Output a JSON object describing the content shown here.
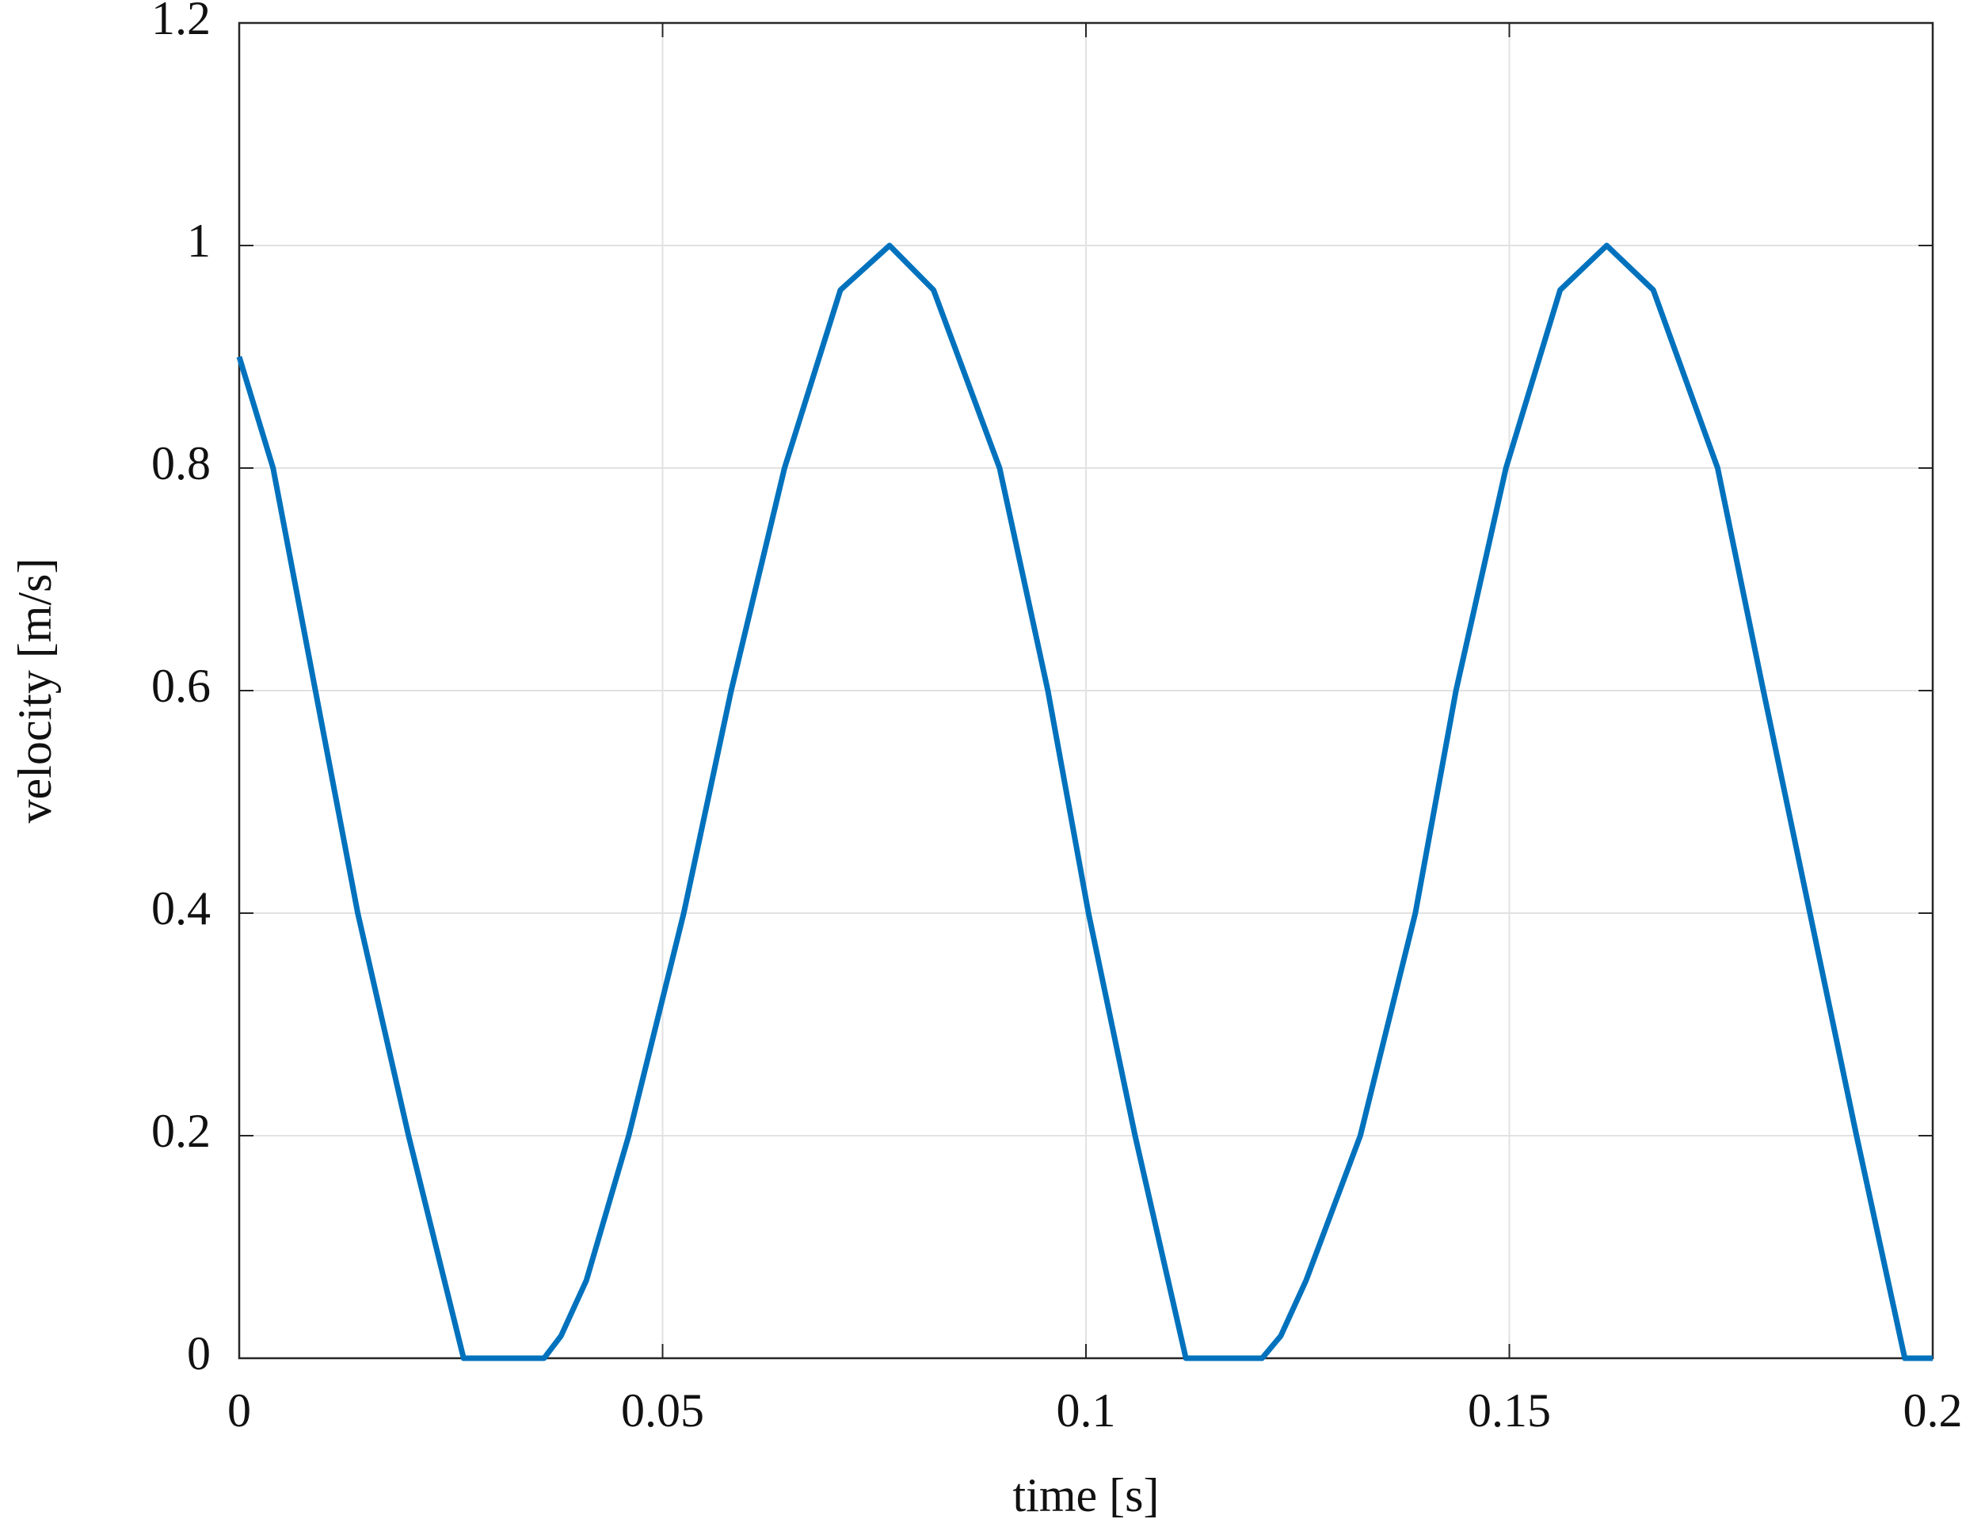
{
  "chart_data": {
    "type": "line",
    "xlabel": "time [s]",
    "ylabel": "velocity [m/s]",
    "x": [
      0,
      0.004,
      0.009,
      0.014,
      0.02,
      0.0265,
      0.036,
      0.038,
      0.041,
      0.046,
      0.0525,
      0.0581,
      0.0644,
      0.071,
      0.0768,
      0.082,
      0.0898,
      0.0955,
      0.1003,
      0.1058,
      0.1118,
      0.1208,
      0.123,
      0.126,
      0.1324,
      0.1389,
      0.1437,
      0.1496,
      0.156,
      0.1615,
      0.167,
      0.1746,
      0.18,
      0.1855,
      0.191,
      0.1967,
      0.2
    ],
    "values": [
      0.9,
      0.8,
      0.6,
      0.4,
      0.2,
      0,
      0,
      0.02,
      0.07,
      0.2,
      0.4,
      0.6,
      0.8,
      0.96,
      1.0,
      0.96,
      0.8,
      0.6,
      0.4,
      0.2,
      0,
      0,
      0.02,
      0.07,
      0.2,
      0.4,
      0.6,
      0.8,
      0.96,
      1.0,
      0.96,
      0.8,
      0.6,
      0.4,
      0.2,
      0,
      0
    ],
    "color": "#0072bd",
    "xlim": [
      0,
      0.2
    ],
    "xticks": [
      0,
      0.05,
      0.1,
      0.15,
      0.2
    ],
    "ylim": [
      0,
      1.2
    ],
    "yticks": [
      0,
      0.2,
      0.4,
      0.6,
      0.8,
      1,
      1.2
    ],
    "grid": true
  }
}
